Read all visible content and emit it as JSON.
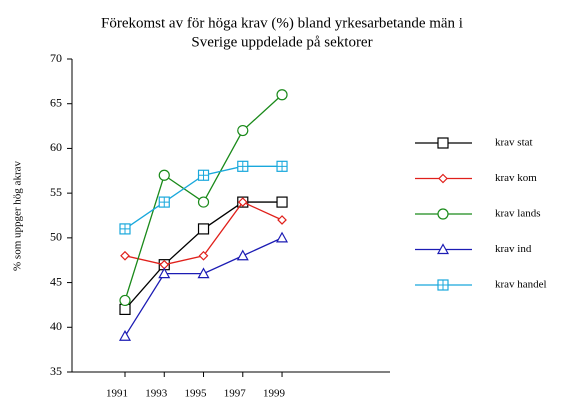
{
  "chart_data": {
    "type": "line",
    "title": [
      "Förekomst av för  höga krav (%) bland yrkesarbetande män i",
      "Sverige uppdelade på sektorer"
    ],
    "y_label": "% som uppger hög akrav",
    "x": [
      1991,
      1993,
      1995,
      1997,
      1999
    ],
    "xlim": [
      1988.3,
      2004.5
    ],
    "xticks": [
      1991,
      1993,
      1995,
      1997,
      1999
    ],
    "ylim": [
      35,
      70
    ],
    "yticks": [
      35,
      40,
      45,
      50,
      55,
      60,
      65,
      70
    ],
    "series": [
      {
        "name": "krav stat",
        "color": "#000000",
        "marker": "square",
        "values": [
          42,
          47,
          51,
          54,
          54
        ]
      },
      {
        "name": "krav kom",
        "color": "#e0201b",
        "marker": "diamond",
        "values": [
          48,
          47,
          48,
          54,
          52
        ]
      },
      {
        "name": "krav lands",
        "color": "#1a8a1a",
        "marker": "circle",
        "values": [
          43,
          57,
          54,
          62,
          66
        ]
      },
      {
        "name": "krav ind",
        "color": "#1c1cb4",
        "marker": "triangle",
        "values": [
          39,
          46,
          46,
          48,
          50
        ]
      },
      {
        "name": "krav handel",
        "color": "#19a8dc",
        "marker": "square-plus",
        "values": [
          51,
          54,
          57,
          58,
          58
        ]
      }
    ]
  }
}
